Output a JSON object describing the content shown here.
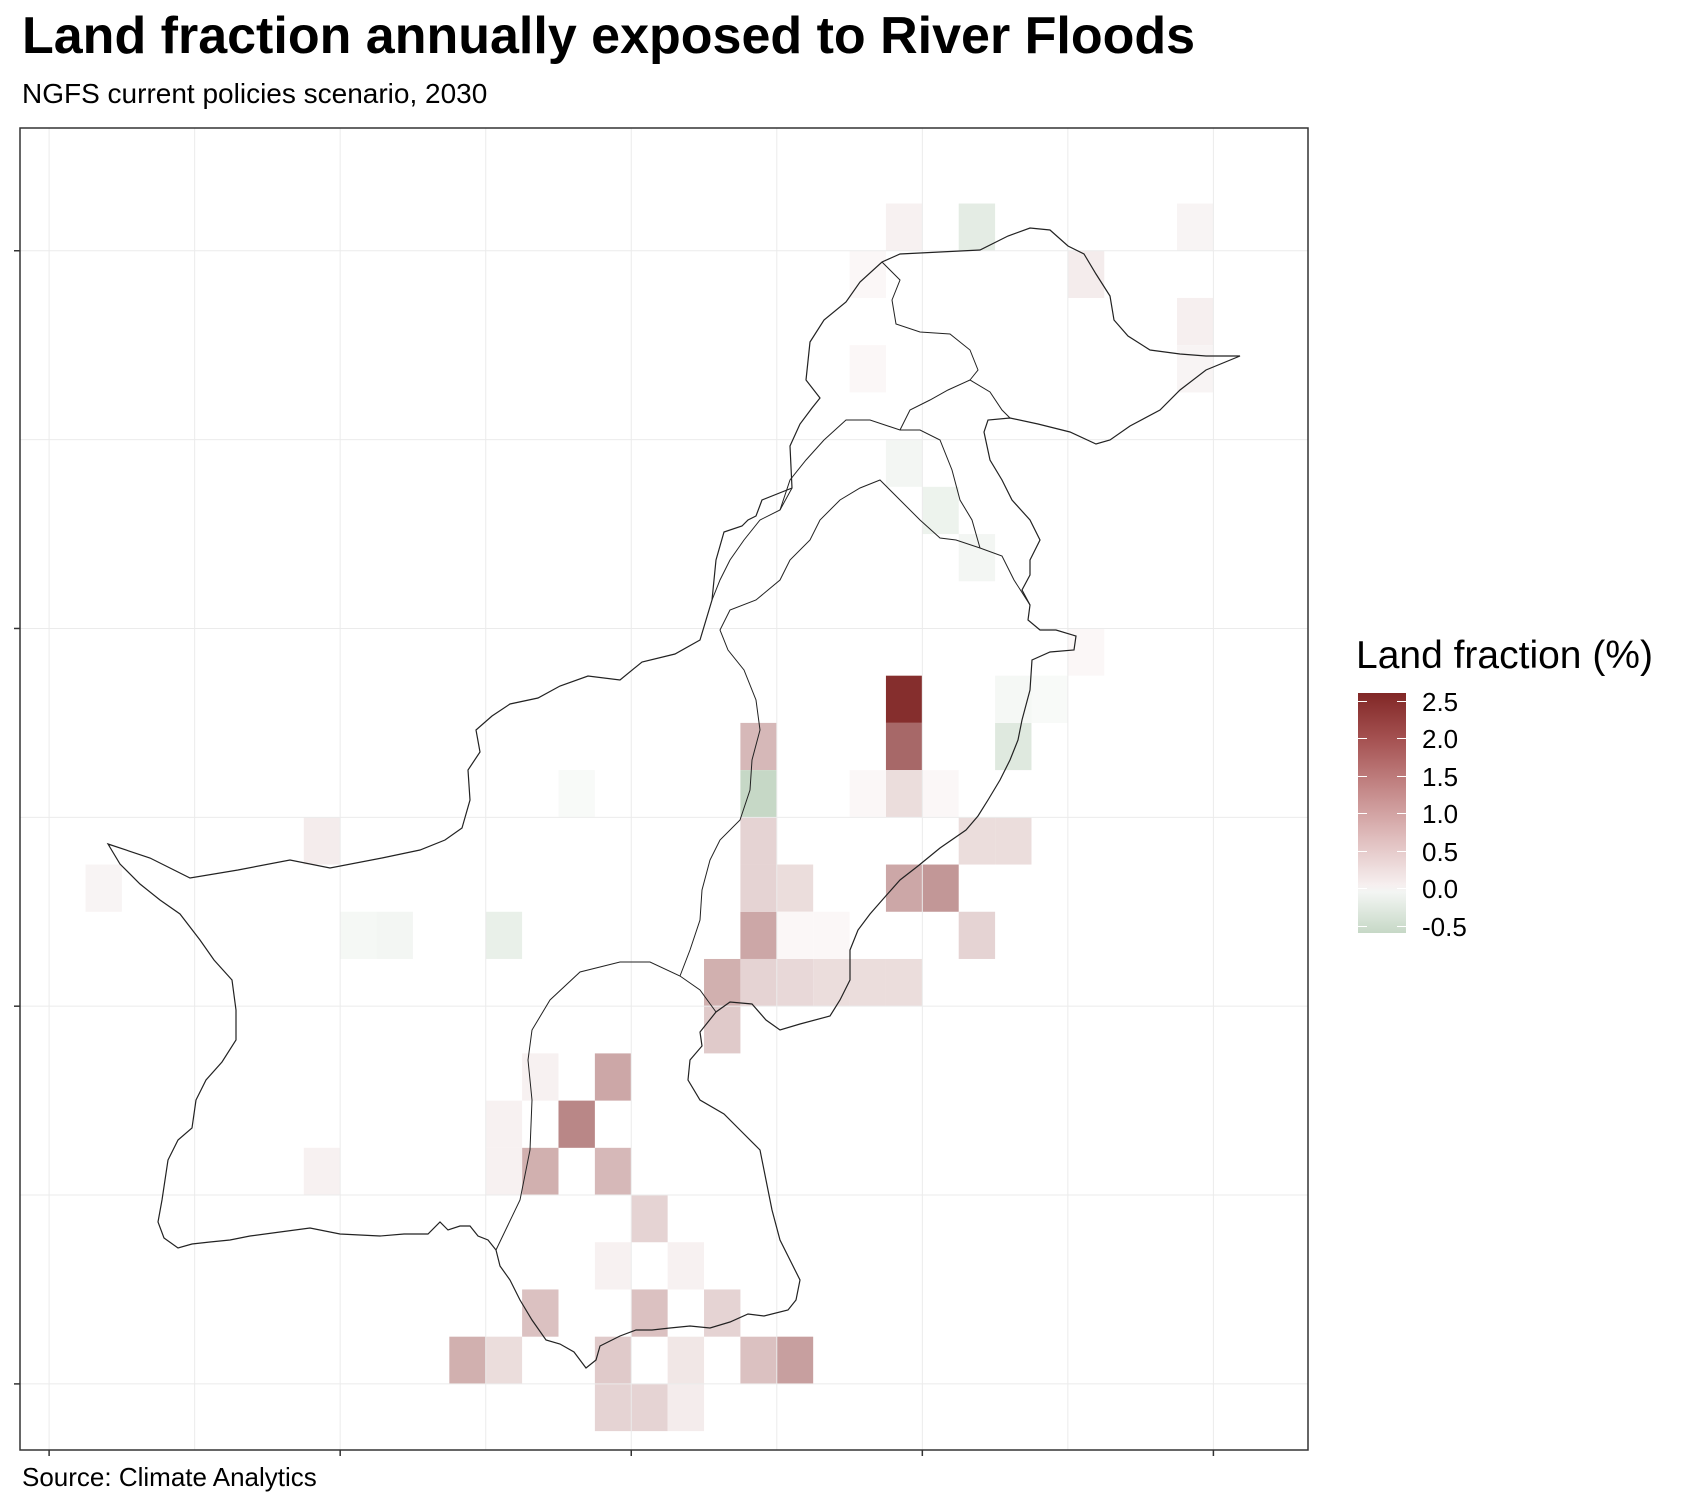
{
  "title": "Land fraction annually exposed to River Floods",
  "subtitle": "NGFS current policies scenario, 2030",
  "caption": "Source: Climate Analytics",
  "legend": {
    "title": "Land fraction (%)",
    "labels": [
      "2.5",
      "2.0",
      "1.5",
      "1.0",
      "0.5",
      "0.0",
      "-0.5"
    ],
    "values": [
      2.5,
      2.0,
      1.5,
      1.0,
      0.5,
      0.0,
      -0.5
    ],
    "range": [
      -0.6,
      2.6
    ],
    "colors": {
      "high": "#812726",
      "mid": "#ffffff",
      "low": "#c6d8c6"
    }
  },
  "map": {
    "region": "Pakistan",
    "lon_range": [
      60.6,
      78.3
    ],
    "lat_range": [
      23.3,
      37.3
    ],
    "graticule_lon": [
      61,
      63,
      65,
      67,
      69,
      71,
      73,
      75,
      77
    ],
    "graticule_lat": [
      24,
      26,
      28,
      30,
      32,
      34,
      36
    ],
    "grid_resolution_deg": 0.5,
    "cells": [
      {
        "lon": 72.75,
        "lat": 31.25,
        "value": 2.5
      },
      {
        "lon": 72.75,
        "lat": 30.75,
        "value": 1.7
      },
      {
        "lon": 68.25,
        "lat": 26.75,
        "value": 1.3
      },
      {
        "lon": 73.25,
        "lat": 29.25,
        "value": 1.1
      },
      {
        "lon": 72.75,
        "lat": 29.25,
        "value": 0.9
      },
      {
        "lon": 70.75,
        "lat": 28.75,
        "value": 0.9
      },
      {
        "lon": 71.25,
        "lat": 24.25,
        "value": 1.0
      },
      {
        "lon": 68.75,
        "lat": 27.25,
        "value": 0.9
      },
      {
        "lon": 67.75,
        "lat": 26.25,
        "value": 0.8
      },
      {
        "lon": 68.75,
        "lat": 26.25,
        "value": 0.7
      },
      {
        "lon": 70.25,
        "lat": 28.25,
        "value": 0.8
      },
      {
        "lon": 70.25,
        "lat": 27.75,
        "value": 0.5
      },
      {
        "lon": 66.75,
        "lat": 24.25,
        "value": 0.8
      },
      {
        "lon": 70.75,
        "lat": 24.25,
        "value": 0.6
      },
      {
        "lon": 68.75,
        "lat": 24.25,
        "value": 0.5
      },
      {
        "lon": 67.75,
        "lat": 24.75,
        "value": 0.6
      },
      {
        "lon": 69.25,
        "lat": 24.75,
        "value": 0.6
      },
      {
        "lon": 69.25,
        "lat": 25.75,
        "value": 0.4
      },
      {
        "lon": 68.75,
        "lat": 23.75,
        "value": 0.4
      },
      {
        "lon": 69.25,
        "lat": 23.75,
        "value": 0.4
      },
      {
        "lon": 70.75,
        "lat": 30.75,
        "value": 0.7
      },
      {
        "lon": 70.75,
        "lat": 29.75,
        "value": 0.4
      },
      {
        "lon": 70.75,
        "lat": 29.25,
        "value": 0.4
      },
      {
        "lon": 70.75,
        "lat": 30.25,
        "value": -0.6
      },
      {
        "lon": 73.75,
        "lat": 29.75,
        "value": 0.3
      },
      {
        "lon": 74.25,
        "lat": 29.75,
        "value": 0.3
      },
      {
        "lon": 73.75,
        "lat": 28.75,
        "value": 0.4
      },
      {
        "lon": 72.75,
        "lat": 30.25,
        "value": 0.3
      },
      {
        "lon": 71.25,
        "lat": 29.25,
        "value": 0.3
      },
      {
        "lon": 70.75,
        "lat": 28.25,
        "value": 0.4
      },
      {
        "lon": 71.25,
        "lat": 28.25,
        "value": 0.35
      },
      {
        "lon": 71.75,
        "lat": 28.25,
        "value": 0.3
      },
      {
        "lon": 72.25,
        "lat": 28.25,
        "value": 0.3
      },
      {
        "lon": 72.75,
        "lat": 28.25,
        "value": 0.3
      },
      {
        "lon": 70.25,
        "lat": 24.75,
        "value": 0.4
      },
      {
        "lon": 67.25,
        "lat": 24.25,
        "value": 0.3
      },
      {
        "lon": 69.75,
        "lat": 24.25,
        "value": 0.2
      },
      {
        "lon": 69.75,
        "lat": 23.75,
        "value": 0.15
      },
      {
        "lon": 68.75,
        "lat": 25.25,
        "value": 0.1
      },
      {
        "lon": 69.75,
        "lat": 25.25,
        "value": 0.1
      },
      {
        "lon": 67.75,
        "lat": 27.25,
        "value": 0.1
      },
      {
        "lon": 67.25,
        "lat": 26.75,
        "value": 0.1
      },
      {
        "lon": 67.25,
        "lat": 26.25,
        "value": 0.1
      },
      {
        "lon": 64.75,
        "lat": 29.75,
        "value": 0.15
      },
      {
        "lon": 64.75,
        "lat": 26.25,
        "value": 0.1
      },
      {
        "lon": 61.75,
        "lat": 29.25,
        "value": 0.08
      },
      {
        "lon": 75.25,
        "lat": 35.75,
        "value": 0.15
      },
      {
        "lon": 76.75,
        "lat": 35.25,
        "value": 0.12
      },
      {
        "lon": 76.75,
        "lat": 36.25,
        "value": 0.08
      },
      {
        "lon": 76.75,
        "lat": 34.75,
        "value": 0.08
      },
      {
        "lon": 72.75,
        "lat": 36.25,
        "value": 0.1
      },
      {
        "lon": 72.25,
        "lat": 35.75,
        "value": 0.05
      },
      {
        "lon": 72.25,
        "lat": 34.75,
        "value": 0.05
      },
      {
        "lon": 75.25,
        "lat": 31.75,
        "value": 0.05
      },
      {
        "lon": 72.25,
        "lat": 30.25,
        "value": 0.05
      },
      {
        "lon": 73.25,
        "lat": 30.25,
        "value": 0.05
      },
      {
        "lon": 71.25,
        "lat": 28.75,
        "value": 0.05
      },
      {
        "lon": 71.75,
        "lat": 28.75,
        "value": 0.05
      },
      {
        "lon": 73.75,
        "lat": 36.25,
        "value": -0.25
      },
      {
        "lon": 74.25,
        "lat": 30.75,
        "value": -0.3
      },
      {
        "lon": 73.25,
        "lat": 33.25,
        "value": -0.15
      },
      {
        "lon": 72.75,
        "lat": 33.75,
        "value": -0.1
      },
      {
        "lon": 73.75,
        "lat": 32.75,
        "value": -0.1
      },
      {
        "lon": 67.25,
        "lat": 28.75,
        "value": -0.2
      },
      {
        "lon": 65.75,
        "lat": 28.75,
        "value": -0.1
      },
      {
        "lon": 65.25,
        "lat": 28.75,
        "value": -0.08
      },
      {
        "lon": 68.25,
        "lat": 30.25,
        "value": -0.05
      },
      {
        "lon": 74.25,
        "lat": 31.25,
        "value": -0.08
      },
      {
        "lon": 74.75,
        "lat": 31.25,
        "value": -0.05
      }
    ]
  }
}
